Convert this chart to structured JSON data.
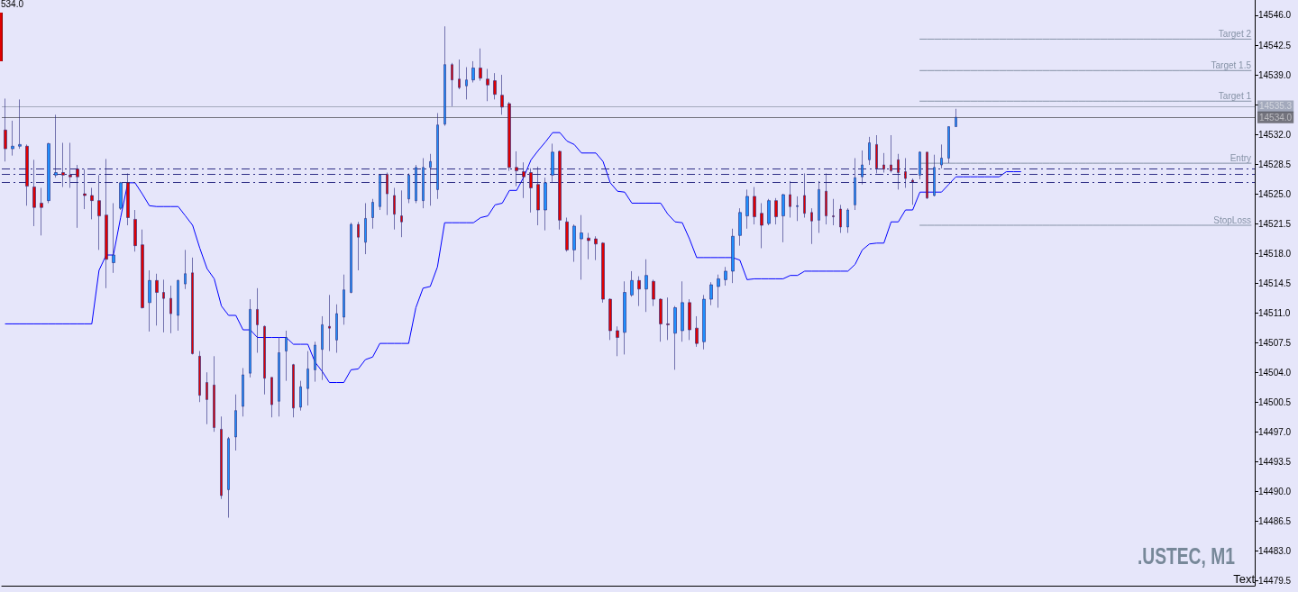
{
  "chart_data": {
    "type": "candlestick",
    "categories": [
      null,
      null,
      null,
      null,
      null,
      null,
      null,
      null,
      null,
      null,
      null,
      null,
      null,
      null,
      null,
      null,
      null,
      null,
      null,
      null,
      null,
      null,
      null,
      null,
      null,
      null,
      null,
      null,
      null,
      null,
      null,
      null,
      null,
      null,
      null,
      null,
      null,
      null,
      null,
      null,
      null,
      null,
      null,
      null,
      null,
      null,
      null,
      null,
      null,
      null,
      null,
      null,
      null,
      null,
      null,
      null,
      null,
      null,
      null,
      null,
      null,
      null,
      null,
      null,
      null,
      null,
      null,
      null,
      null,
      null,
      null,
      null,
      null,
      null,
      null,
      null,
      null,
      null,
      null,
      null,
      null,
      null,
      null,
      null,
      null,
      null,
      null,
      null,
      null,
      null,
      null,
      null,
      null,
      null,
      null,
      null,
      null,
      null,
      null,
      null,
      null,
      null,
      null,
      null,
      null,
      null,
      null,
      null,
      null,
      null,
      null,
      null,
      null,
      null,
      null,
      null,
      null,
      null,
      null,
      null,
      null,
      null,
      null,
      null,
      null,
      null,
      null,
      null,
      null,
      null,
      null,
      null,
      null,
      null,
      null,
      null,
      null,
      null,
      null,
      null,
      null,
      null,
      null,
      null,
      null,
      null,
      null,
      null,
      null,
      null,
      null,
      null,
      null,
      null,
      null,
      null,
      null,
      null,
      null,
      null,
      null,
      null,
      null,
      null,
      null,
      null,
      null,
      null,
      null,
      null,
      null,
      null,
      null,
      null
    ],
    "ohlc": [
      [
        14532.5,
        14536.2,
        14528.8,
        14530.3
      ],
      [
        14530.3,
        14533.6,
        14529.5,
        14530.6
      ],
      [
        14530.6,
        14536.1,
        14530.3,
        14530.8
      ],
      [
        14530.6,
        14530.8,
        14523.6,
        14525.9
      ],
      [
        14525.8,
        14529.0,
        14521.2,
        14523.4
      ],
      [
        14523.9,
        14525.7,
        14520.1,
        14523.4
      ],
      [
        14524.2,
        14531.0,
        14523.9,
        14530.9
      ],
      [
        14527.2,
        14534.3,
        14526.9,
        14527.5
      ],
      [
        14527.5,
        14531.0,
        14525.8,
        14527.2
      ],
      [
        14527.2,
        14531.0,
        14525.7,
        14527.0
      ],
      [
        14527.9,
        14528.4,
        14521.0,
        14527.0
      ],
      [
        14525.0,
        14527.9,
        14523.2,
        14524.8
      ],
      [
        14524.8,
        14525.7,
        14522.0,
        14524.2
      ],
      [
        14524.2,
        14527.2,
        14518.4,
        14522.4
      ],
      [
        14522.5,
        14529.1,
        14513.9,
        14517.3
      ],
      [
        14516.9,
        14523.9,
        14515.7,
        14517.8
      ],
      [
        14523.3,
        14526.4,
        14523.1,
        14526.3
      ],
      [
        14526.3,
        14527.4,
        14521.3,
        14522.2
      ],
      [
        14522.0,
        14523.1,
        14518.2,
        14518.9
      ],
      [
        14519.0,
        14520.8,
        14511.5,
        14511.6
      ],
      [
        14512.2,
        14516.0,
        14508.8,
        14514.8
      ],
      [
        14514.8,
        14515.6,
        14509.5,
        14513.4
      ],
      [
        14513.4,
        14514.9,
        14508.7,
        14512.7
      ],
      [
        14512.7,
        14514.2,
        14508.6,
        14510.9
      ],
      [
        14510.7,
        14514.9,
        14508.9,
        14514.8
      ],
      [
        14514.4,
        14518.4,
        14513.8,
        14515.6
      ],
      [
        14515.7,
        14517.5,
        14506.1,
        14506.2
      ],
      [
        14505.9,
        14506.5,
        14500.5,
        14501.3
      ],
      [
        14502.8,
        14504.0,
        14497.9,
        14500.8
      ],
      [
        14502.5,
        14505.9,
        14497.0,
        14497.5
      ],
      [
        14497.3,
        14498.8,
        14489.1,
        14489.5
      ],
      [
        14490.2,
        14496.4,
        14486.9,
        14496.2
      ],
      [
        14496.4,
        14501.4,
        14494.8,
        14499.5
      ],
      [
        14500.0,
        14504.5,
        14498.8,
        14503.7
      ],
      [
        14503.9,
        14512.6,
        14503.4,
        14511.4
      ],
      [
        14511.4,
        14513.9,
        14506.3,
        14509.6
      ],
      [
        14509.4,
        14509.5,
        14501.4,
        14503.3
      ],
      [
        14503.4,
        14503.4,
        14498.7,
        14500.2
      ],
      [
        14500.6,
        14508.1,
        14498.8,
        14506.3
      ],
      [
        14506.5,
        14508.9,
        14503.0,
        14508.1
      ],
      [
        14504.9,
        14505.0,
        14498.7,
        14499.8
      ],
      [
        14499.9,
        14503.0,
        14499.5,
        14502.3
      ],
      [
        14502.1,
        14506.5,
        14500.1,
        14504.4
      ],
      [
        14504.3,
        14507.6,
        14502.9,
        14507.2
      ],
      [
        14506.7,
        14510.6,
        14503.1,
        14509.6
      ],
      [
        14509.4,
        14513.1,
        14506.5,
        14509.2
      ],
      [
        14507.8,
        14512.0,
        14506.3,
        14510.9
      ],
      [
        14510.5,
        14515.5,
        14509.6,
        14513.7
      ],
      [
        14513.4,
        14521.6,
        14513.3,
        14521.4
      ],
      [
        14521.4,
        14521.7,
        14516.0,
        14519.9
      ],
      [
        14519.3,
        14523.9,
        14517.9,
        14522.1
      ],
      [
        14522.2,
        14524.4,
        14520.9,
        14524.0
      ],
      [
        14523.5,
        14527.3,
        14523.1,
        14527.2
      ],
      [
        14527.3,
        14527.5,
        14522.5,
        14525.0
      ],
      [
        14524.8,
        14525.7,
        14520.8,
        14522.6
      ],
      [
        14522.4,
        14525.4,
        14519.9,
        14521.7
      ],
      [
        14524.4,
        14527.4,
        14523.9,
        14527.2
      ],
      [
        14524.2,
        14528.4,
        14523.9,
        14528.1
      ],
      [
        14524.2,
        14529.2,
        14523.3,
        14528.1
      ],
      [
        14528.1,
        14529.7,
        14523.6,
        14528.8
      ],
      [
        14525.5,
        14534.5,
        14524.4,
        14533.1
      ],
      [
        14533.2,
        14544.7,
        14533.0,
        14540.2
      ],
      [
        14540.2,
        14540.4,
        14535.3,
        14538.4
      ],
      [
        14538.5,
        14540.8,
        14537.3,
        14537.5
      ],
      [
        14537.7,
        14539.9,
        14536.1,
        14538.4
      ],
      [
        14538.4,
        14540.6,
        14538.1,
        14539.8
      ],
      [
        14539.8,
        14542.1,
        14538.3,
        14538.6
      ],
      [
        14538.5,
        14539.7,
        14535.9,
        14537.8
      ],
      [
        14538.3,
        14539.2,
        14536.1,
        14536.7
      ],
      [
        14536.6,
        14539.0,
        14534.3,
        14535.2
      ],
      [
        14535.6,
        14535.8,
        14527.7,
        14528.1
      ],
      [
        14528.1,
        14530.0,
        14525.9,
        14527.7
      ],
      [
        14527.6,
        14528.7,
        14524.5,
        14527.0
      ],
      [
        14527.5,
        14528.0,
        14522.8,
        14525.7
      ],
      [
        14526.1,
        14528.2,
        14521.3,
        14523.1
      ],
      [
        14523.1,
        14526.9,
        14520.7,
        14526.3
      ],
      [
        14527.2,
        14530.9,
        14526.4,
        14529.9
      ],
      [
        14530.0,
        14530.1,
        14520.8,
        14521.9
      ],
      [
        14521.7,
        14522.2,
        14518.2,
        14518.4
      ],
      [
        14518.4,
        14521.4,
        14517.0,
        14521.2
      ],
      [
        14519.7,
        14522.5,
        14514.9,
        14520.4
      ],
      [
        14519.8,
        14520.4,
        14517.3,
        14519.5
      ],
      [
        14519.7,
        14520.0,
        14517.2,
        14519.1
      ],
      [
        14519.2,
        14519.3,
        14512.2,
        14512.6
      ],
      [
        14512.6,
        14512.7,
        14507.8,
        14508.9
      ],
      [
        14508.9,
        14509.4,
        14505.9,
        14508.1
      ],
      [
        14508.7,
        14514.7,
        14506.1,
        14513.4
      ],
      [
        14513.1,
        14515.9,
        14512.9,
        14514.8
      ],
      [
        14514.8,
        14515.3,
        14511.8,
        14513.8
      ],
      [
        14513.8,
        14517.3,
        14511.1,
        14515.4
      ],
      [
        14514.7,
        14514.9,
        14511.8,
        14512.6
      ],
      [
        14512.6,
        14512.7,
        14507.6,
        14509.7
      ],
      [
        14509.7,
        14512.8,
        14507.8,
        14509.6
      ],
      [
        14508.6,
        14511.8,
        14504.3,
        14511.6
      ],
      [
        14508.9,
        14514.7,
        14507.6,
        14512.2
      ],
      [
        14512.2,
        14512.6,
        14507.8,
        14509.0
      ],
      [
        14509.2,
        14510.6,
        14507.0,
        14507.4
      ],
      [
        14507.6,
        14513.1,
        14506.7,
        14512.6
      ],
      [
        14512.6,
        14514.6,
        14511.9,
        14514.3
      ],
      [
        14514.1,
        14515.5,
        14511.6,
        14515.0
      ],
      [
        14514.9,
        14516.4,
        14514.2,
        14515.9
      ],
      [
        14515.9,
        14520.9,
        14514.5,
        14520.0
      ],
      [
        14520.1,
        14523.3,
        14518.9,
        14522.8
      ],
      [
        14522.4,
        14525.5,
        14520.9,
        14524.7
      ],
      [
        14524.7,
        14525.8,
        14521.4,
        14522.3
      ],
      [
        14522.7,
        14523.9,
        14518.6,
        14521.3
      ],
      [
        14521.5,
        14524.4,
        14521.3,
        14524.2
      ],
      [
        14524.2,
        14524.5,
        14521.4,
        14522.3
      ],
      [
        14522.4,
        14525.0,
        14519.3,
        14524.9
      ],
      [
        14524.9,
        14526.5,
        14522.2,
        14523.5
      ],
      [
        14523.5,
        14524.7,
        14521.8,
        14523.6
      ],
      [
        14524.8,
        14527.4,
        14522.2,
        14522.7
      ],
      [
        14522.8,
        14523.3,
        14519.1,
        14521.8
      ],
      [
        14521.9,
        14526.5,
        14520.4,
        14525.5
      ],
      [
        14525.3,
        14527.4,
        14521.4,
        14522.4
      ],
      [
        14522.4,
        14524.4,
        14521.3,
        14522.3
      ],
      [
        14523.2,
        14523.7,
        14520.4,
        14521.1
      ],
      [
        14521.1,
        14523.3,
        14520.4,
        14523.1
      ],
      [
        14523.7,
        14529.2,
        14523.1,
        14526.9
      ],
      [
        14527.0,
        14530.1,
        14526.1,
        14528.4
      ],
      [
        14529.0,
        14531.7,
        14528.4,
        14531.0
      ],
      [
        14530.8,
        14531.9,
        14527.4,
        14528.0
      ],
      [
        14528.4,
        14529.8,
        14527.5,
        14527.9
      ],
      [
        14528.4,
        14531.9,
        14527.5,
        14527.7
      ],
      [
        14529.0,
        14529.7,
        14525.5,
        14527.5
      ],
      [
        14527.6,
        14529.2,
        14525.7,
        14526.8
      ],
      [
        14526.6,
        14526.8,
        14523.7,
        14526.4
      ],
      [
        14527.2,
        14530.0,
        14526.7,
        14529.9
      ],
      [
        14529.9,
        14529.9,
        14524.4,
        14524.5
      ],
      [
        14524.8,
        14529.6,
        14524.7,
        14528.1
      ],
      [
        14528.4,
        14530.8,
        14528.0,
        14529.2
      ],
      [
        14529.2,
        14532.9,
        14528.6,
        14532.9
      ],
      [
        14532.9,
        14535.0,
        14532.9,
        14534.0
      ],
      null,
      null,
      null,
      null,
      null,
      null,
      null,
      null,
      null,
      null,
      null,
      null,
      null,
      null,
      null,
      null,
      null,
      null,
      null,
      null,
      null,
      null,
      null,
      null,
      null,
      null,
      null,
      null,
      null,
      null,
      null,
      null,
      null,
      null,
      null,
      null,
      null,
      null,
      null,
      null,
      null
    ],
    "colors": [
      "#e00000",
      "#1e90ff",
      "#1e90ff",
      "#e00000",
      "#e00000",
      "#e00000",
      "#1e90ff",
      "#1e90ff",
      "#e00000",
      "#e00000",
      "#e00000",
      "#e00000",
      "#e00000",
      "#e00000",
      "#e00000",
      "#1e90ff",
      "#1e90ff",
      "#e00000",
      "#e00000",
      "#e00000",
      "#1e90ff",
      "#e00000",
      "#e00000",
      "#e00000",
      "#1e90ff",
      "#1e90ff",
      "#e00000",
      "#e00000",
      "#e00000",
      "#e00000",
      "#e00000",
      "#1e90ff",
      "#1e90ff",
      "#1e90ff",
      "#1e90ff",
      "#e00000",
      "#e00000",
      "#e00000",
      "#1e90ff",
      "#1e90ff",
      "#e00000",
      "#1e90ff",
      "#1e90ff",
      "#1e90ff",
      "#1e90ff",
      "#e00000",
      "#1e90ff",
      "#1e90ff",
      "#1e90ff",
      "#e00000",
      "#1e90ff",
      "#1e90ff",
      "#1e90ff",
      "#e00000",
      "#e00000",
      "#e00000",
      "#1e90ff",
      "#1e90ff",
      "#1e90ff",
      "#1e90ff",
      "#1e90ff",
      "#1e90ff",
      "#e00000",
      "#e00000",
      "#1e90ff",
      "#1e90ff",
      "#e00000",
      "#e00000",
      "#e00000",
      "#e00000",
      "#e00000",
      "#e00000",
      "#e00000",
      "#e00000",
      "#e00000",
      "#1e90ff",
      "#1e90ff",
      "#e00000",
      "#e00000",
      "#1e90ff",
      "#1e90ff",
      "#e00000",
      "#e00000",
      "#e00000",
      "#e00000",
      "#e00000",
      "#1e90ff",
      "#1e90ff",
      "#e00000",
      "#1e90ff",
      "#e00000",
      "#e00000",
      "#e00000",
      "#1e90ff",
      "#1e90ff",
      "#e00000",
      "#e00000",
      "#1e90ff",
      "#1e90ff",
      "#1e90ff",
      "#1e90ff",
      "#1e90ff",
      "#1e90ff",
      "#1e90ff",
      "#e00000",
      "#e00000",
      "#1e90ff",
      "#e00000",
      "#1e90ff",
      "#e00000",
      "#1e90ff",
      "#e00000",
      "#e00000",
      "#1e90ff",
      "#e00000",
      "#e00000",
      "#e00000",
      "#1e90ff",
      "#1e90ff",
      "#1e90ff",
      "#1e90ff",
      "#e00000",
      "#e00000",
      "#e00000",
      "#e00000",
      "#e00000",
      "#e00000",
      "#1e90ff",
      "#e00000",
      "#1e90ff",
      "#1e90ff",
      "#1e90ff",
      "#1e90ff",
      null,
      null,
      null,
      null,
      null,
      null,
      null,
      null,
      null,
      null,
      null,
      null,
      null,
      null,
      null,
      null,
      null,
      null,
      null,
      null,
      null,
      null,
      null,
      null,
      null,
      null,
      null,
      null,
      null,
      null,
      null,
      null,
      null,
      null,
      null,
      null,
      null,
      null,
      null,
      null,
      null
    ],
    "series": [
      {
        "type": "line",
        "color": "#0000ff",
        "values": [
          14509.7,
          14509.7,
          14509.7,
          14509.7,
          14509.7,
          14509.7,
          14509.7,
          14509.7,
          14509.7,
          14509.7,
          14509.7,
          14509.7,
          14509.7,
          14516.0,
          14517.8,
          14517.8,
          14522.2,
          14526.3,
          14526.3,
          14525.0,
          14523.6,
          14523.5,
          14523.5,
          14523.5,
          14523.5,
          14522.4,
          14521.3,
          14518.6,
          14516.2,
          14515.0,
          14511.8,
          14510.7,
          14510.7,
          14509.0,
          14509.0,
          14508.1,
          14508.1,
          14508.1,
          14508.1,
          14508.1,
          14507.3,
          14507.3,
          14507.3,
          14505.2,
          14504.1,
          14502.8,
          14502.8,
          14502.8,
          14504.3,
          14504.4,
          14505.5,
          14505.8,
          14507.4,
          14507.4,
          14507.4,
          14507.4,
          14507.4,
          14511.6,
          14513.9,
          14514.1,
          14516.4,
          14521.6,
          14521.6,
          14521.6,
          14521.6,
          14521.6,
          14522.2,
          14522.4,
          14523.7,
          14523.9,
          14525.4,
          14525.4,
          14527.0,
          14529.0,
          14530.1,
          14531.1,
          14532.2,
          14532.2,
          14531.2,
          14530.8,
          14529.8,
          14529.8,
          14529.8,
          14528.8,
          14526.3,
          14525.3,
          14525.2,
          14523.9,
          14523.9,
          14523.9,
          14523.9,
          14523.9,
          14522.6,
          14521.7,
          14521.6,
          14519.7,
          14517.5,
          14517.5,
          14517.5,
          14517.5,
          14517.5,
          14517.5,
          14517.2,
          14514.9,
          14515.0,
          14515.0,
          14515.0,
          14515.0,
          14515.0,
          14515.4,
          14515.4,
          14515.9,
          14515.9,
          14515.9,
          14515.9,
          14515.9,
          14515.9,
          14515.9,
          14516.7,
          14518.4,
          14519.1,
          14519.2,
          14519.2,
          14521.7,
          14521.7,
          14523.1,
          14523.1,
          14525.2,
          14525.2,
          14525.2,
          14525.2,
          14526.1,
          14527.0,
          14527.0,
          14527.0,
          14527.0,
          14527.0,
          14527.0,
          14527.0,
          14527.6,
          14527.6,
          14527.6,
          null,
          null,
          null,
          null,
          null,
          null,
          null,
          null,
          null,
          null,
          null,
          null,
          null,
          null,
          null,
          null,
          null,
          null,
          null,
          null,
          null,
          null,
          null,
          null,
          null,
          null,
          null,
          null,
          null,
          null,
          null,
          null
        ]
      },
      {
        "type": "line",
        "name": "Target 2",
        "color": "#8592a6",
        "values": [
          null,
          null,
          null,
          null,
          null,
          null,
          null,
          null,
          null,
          null,
          null,
          null,
          null,
          null,
          null,
          null,
          null,
          null,
          null,
          null,
          null,
          null,
          null,
          null,
          null,
          null,
          null,
          null,
          null,
          null,
          null,
          null,
          null,
          null,
          null,
          null,
          null,
          null,
          null,
          null,
          null,
          null,
          null,
          null,
          null,
          null,
          null,
          null,
          null,
          null,
          null,
          null,
          null,
          null,
          null,
          null,
          null,
          null,
          null,
          null,
          null,
          null,
          null,
          null,
          null,
          null,
          null,
          null,
          null,
          null,
          null,
          null,
          null,
          null,
          null,
          null,
          null,
          null,
          null,
          null,
          null,
          null,
          null,
          null,
          null,
          null,
          null,
          null,
          null,
          null,
          null,
          null,
          null,
          null,
          null,
          null,
          null,
          null,
          null,
          null,
          null,
          null,
          null,
          null,
          null,
          null,
          null,
          null,
          null,
          null,
          null,
          null,
          null,
          null,
          null,
          null,
          null,
          null,
          null,
          null,
          null,
          null,
          null,
          null,
          null,
          null,
          null,
          14543.2,
          14543.2,
          14543.2,
          14543.2,
          14543.2,
          14543.2,
          14543.2,
          14543.2,
          14543.2,
          14543.2,
          14543.2,
          14543.2,
          14543.2,
          14543.2,
          14543.2,
          14543.2,
          14543.2,
          14543.2,
          14543.2,
          14543.2,
          14543.2,
          14543.2,
          14543.2,
          14543.2,
          14543.2,
          14543.2,
          14543.2,
          14543.2,
          14543.2,
          14543.2,
          14543.2,
          14543.2,
          14543.2,
          14543.2,
          14543.2,
          14543.2,
          14543.2,
          14543.2,
          14543.2,
          14543.2,
          14543.2,
          14543.2,
          14543.2,
          14543.2,
          14543.2,
          14543.2,
          14543.2
        ]
      },
      {
        "type": "line",
        "name": "Target 1.5",
        "color": "#8592a6",
        "values": [
          null,
          null,
          null,
          null,
          null,
          null,
          null,
          null,
          null,
          null,
          null,
          null,
          null,
          null,
          null,
          null,
          null,
          null,
          null,
          null,
          null,
          null,
          null,
          null,
          null,
          null,
          null,
          null,
          null,
          null,
          null,
          null,
          null,
          null,
          null,
          null,
          null,
          null,
          null,
          null,
          null,
          null,
          null,
          null,
          null,
          null,
          null,
          null,
          null,
          null,
          null,
          null,
          null,
          null,
          null,
          null,
          null,
          null,
          null,
          null,
          null,
          null,
          null,
          null,
          null,
          null,
          null,
          null,
          null,
          null,
          null,
          null,
          null,
          null,
          null,
          null,
          null,
          null,
          null,
          null,
          null,
          null,
          null,
          null,
          null,
          null,
          null,
          null,
          null,
          null,
          null,
          null,
          null,
          null,
          null,
          null,
          null,
          null,
          null,
          null,
          null,
          null,
          null,
          null,
          null,
          null,
          null,
          null,
          null,
          null,
          null,
          null,
          null,
          null,
          null,
          null,
          null,
          null,
          null,
          null,
          null,
          null,
          null,
          null,
          null,
          null,
          null,
          14539.5,
          14539.5,
          14539.5,
          14539.5,
          14539.5,
          14539.5,
          14539.5,
          14539.5,
          14539.5,
          14539.5,
          14539.5,
          14539.5,
          14539.5,
          14539.5,
          14539.5,
          14539.5,
          14539.5,
          14539.5,
          14539.5,
          14539.5,
          14539.5,
          14539.5,
          14539.5,
          14539.5,
          14539.5,
          14539.5,
          14539.5,
          14539.5,
          14539.5,
          14539.5,
          14539.5,
          14539.5,
          14539.5,
          14539.5,
          14539.5,
          14539.5,
          14539.5,
          14539.5,
          14539.5,
          14539.5,
          14539.5,
          14539.5,
          14539.5,
          14539.5,
          14539.5,
          14539.5,
          14539.5
        ]
      },
      {
        "type": "line",
        "name": "Target 1",
        "color": "#8592a6",
        "values": [
          null,
          null,
          null,
          null,
          null,
          null,
          null,
          null,
          null,
          null,
          null,
          null,
          null,
          null,
          null,
          null,
          null,
          null,
          null,
          null,
          null,
          null,
          null,
          null,
          null,
          null,
          null,
          null,
          null,
          null,
          null,
          null,
          null,
          null,
          null,
          null,
          null,
          null,
          null,
          null,
          null,
          null,
          null,
          null,
          null,
          null,
          null,
          null,
          null,
          null,
          null,
          null,
          null,
          null,
          null,
          null,
          null,
          null,
          null,
          null,
          null,
          null,
          null,
          null,
          null,
          null,
          null,
          null,
          null,
          null,
          null,
          null,
          null,
          null,
          null,
          null,
          null,
          null,
          null,
          null,
          null,
          null,
          null,
          null,
          null,
          null,
          null,
          null,
          null,
          null,
          null,
          null,
          null,
          null,
          null,
          null,
          null,
          null,
          null,
          null,
          null,
          null,
          null,
          null,
          null,
          null,
          null,
          null,
          null,
          null,
          null,
          null,
          null,
          null,
          null,
          null,
          null,
          null,
          null,
          null,
          null,
          null,
          null,
          null,
          null,
          null,
          null,
          14535.9,
          14535.9,
          14535.9,
          14535.9,
          14535.9,
          14535.9,
          14535.9,
          14535.9,
          14535.9,
          14535.9,
          14535.9,
          14535.9,
          14535.9,
          14535.9,
          14535.9,
          14535.9,
          14535.9,
          14535.9,
          14535.9,
          14535.9,
          14535.9,
          14535.9,
          14535.9,
          14535.9,
          14535.9,
          14535.9,
          14535.9,
          14535.9,
          14535.9,
          14535.9,
          14535.9,
          14535.9,
          14535.9,
          14535.9,
          14535.9,
          14535.9,
          14535.9,
          14535.9,
          14535.9,
          14535.9,
          14535.9,
          14535.9,
          14535.9,
          14535.9,
          14535.9,
          14535.9,
          14535.9
        ]
      },
      {
        "type": "line",
        "name": "Entry",
        "color": "#8592a6",
        "values": [
          null,
          null,
          null,
          null,
          null,
          null,
          null,
          null,
          null,
          null,
          null,
          null,
          null,
          null,
          null,
          null,
          null,
          null,
          null,
          null,
          null,
          null,
          null,
          null,
          null,
          null,
          null,
          null,
          null,
          null,
          null,
          null,
          null,
          null,
          null,
          null,
          null,
          null,
          null,
          null,
          null,
          null,
          null,
          null,
          null,
          null,
          null,
          null,
          null,
          null,
          null,
          null,
          null,
          null,
          null,
          null,
          null,
          null,
          null,
          null,
          null,
          null,
          null,
          null,
          null,
          null,
          null,
          null,
          null,
          null,
          null,
          null,
          null,
          null,
          null,
          null,
          null,
          null,
          null,
          null,
          null,
          null,
          null,
          null,
          null,
          null,
          null,
          null,
          null,
          null,
          null,
          null,
          null,
          null,
          null,
          null,
          null,
          null,
          null,
          null,
          null,
          null,
          null,
          null,
          null,
          null,
          null,
          null,
          null,
          null,
          null,
          null,
          null,
          null,
          null,
          null,
          null,
          null,
          null,
          null,
          null,
          null,
          null,
          null,
          null,
          null,
          null,
          14528.6,
          14528.6,
          14528.6,
          14528.6,
          14528.6,
          14528.6,
          14528.6,
          14528.6,
          14528.6,
          14528.6,
          14528.6,
          14528.6,
          14528.6,
          14528.6,
          14528.6,
          14528.6,
          14528.6,
          14528.6,
          14528.6,
          14528.6,
          14528.6,
          14528.6,
          14528.6,
          14528.6,
          14528.6,
          14528.6,
          14528.6,
          14528.6,
          14528.6,
          14528.6,
          14528.6,
          14528.6,
          14528.6,
          14528.6,
          14528.6,
          14528.6,
          14528.6,
          14528.6,
          14528.6,
          14528.6,
          14528.6,
          14528.6,
          14528.6,
          14528.6,
          14528.6,
          14528.6,
          14528.6
        ]
      },
      {
        "type": "line",
        "name": "StopLoss",
        "color": "#8592a6",
        "values": [
          null,
          null,
          null,
          null,
          null,
          null,
          null,
          null,
          null,
          null,
          null,
          null,
          null,
          null,
          null,
          null,
          null,
          null,
          null,
          null,
          null,
          null,
          null,
          null,
          null,
          null,
          null,
          null,
          null,
          null,
          null,
          null,
          null,
          null,
          null,
          null,
          null,
          null,
          null,
          null,
          null,
          null,
          null,
          null,
          null,
          null,
          null,
          null,
          null,
          null,
          null,
          null,
          null,
          null,
          null,
          null,
          null,
          null,
          null,
          null,
          null,
          null,
          null,
          null,
          null,
          null,
          null,
          null,
          null,
          null,
          null,
          null,
          null,
          null,
          null,
          null,
          null,
          null,
          null,
          null,
          null,
          null,
          null,
          null,
          null,
          null,
          null,
          null,
          null,
          null,
          null,
          null,
          null,
          null,
          null,
          null,
          null,
          null,
          null,
          null,
          null,
          null,
          null,
          null,
          null,
          null,
          null,
          null,
          null,
          null,
          null,
          null,
          null,
          null,
          null,
          null,
          null,
          null,
          null,
          null,
          null,
          null,
          null,
          null,
          null,
          null,
          null,
          14521.3,
          14521.3,
          14521.3,
          14521.3,
          14521.3,
          14521.3,
          14521.3,
          14521.3,
          14521.3,
          14521.3,
          14521.3,
          14521.3,
          14521.3,
          14521.3,
          14521.3,
          14521.3,
          14521.3,
          14521.3,
          14521.3,
          14521.3,
          14521.3,
          14521.3,
          14521.3,
          14521.3,
          14521.3,
          14521.3,
          14521.3,
          14521.3,
          14521.3,
          14521.3,
          14521.3,
          14521.3,
          14521.3,
          14521.3,
          14521.3,
          14521.3,
          14521.3,
          14521.3,
          14521.3,
          14521.3,
          14521.3,
          14521.3,
          14521.3,
          14521.3,
          14521.3,
          14521.3,
          14521.3
        ]
      }
    ],
    "ref_lines": [
      {
        "axis": "y",
        "value": 14535.3,
        "label": "14535.3",
        "color": "#5f6b7d"
      },
      {
        "axis": "y",
        "value": 14534.0,
        "label": "14534.0",
        "color": "#000000"
      },
      {
        "axis": "y",
        "value": 14528.0,
        "color": "#2d2d85",
        "line_style": "dashed"
      },
      {
        "axis": "y",
        "value": 14527.3,
        "color": "#2d2d85",
        "line_style": "dashed"
      },
      {
        "axis": "y",
        "value": 14526.4,
        "color": "#2d2d85",
        "line_style": "dashed"
      }
    ],
    "ylim": [
      14478.9,
      14547.8
    ],
    "yticks": [
      14479.5,
      {
        "value": 14483,
        "label": "14483.0"
      },
      14486.5,
      {
        "value": 14490,
        "label": "14490.0"
      },
      14493.5,
      {
        "value": 14497,
        "label": "14497.0"
      },
      14500.5,
      {
        "value": 14504,
        "label": "14504.0"
      },
      14507.5,
      {
        "value": 14511,
        "label": "14511.0"
      },
      14514.5,
      {
        "value": 14518,
        "label": "14518.0"
      },
      14521.5,
      {
        "value": 14525,
        "label": "14525.0"
      },
      14528.5,
      {
        "value": 14532,
        "label": "14532.0"
      },
      {
        "value": 14535.5,
        "label": null
      },
      {
        "value": 14539,
        "label": "14539.0"
      },
      14542.5,
      {
        "value": 14546,
        "label": "14546.0"
      }
    ],
    "tick_labels": "y",
    "annotations": [
      "534.0",
      ".USTEC, M1",
      "Text"
    ]
  }
}
